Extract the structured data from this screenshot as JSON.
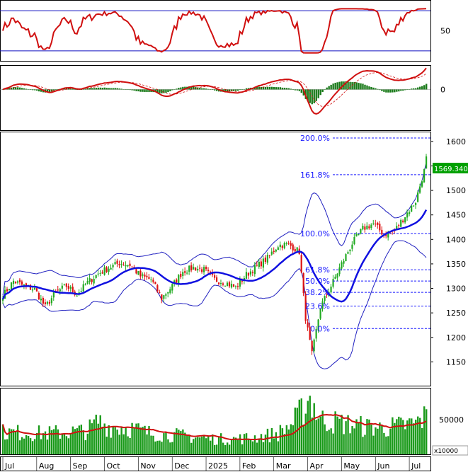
{
  "chart_data": {
    "type": "candlestick",
    "x_tick_labels": [
      "Jul",
      "Aug",
      "Sep",
      "Oct",
      "Nov",
      "Dec",
      "2025",
      "Feb",
      "Mar",
      "Apr",
      "May",
      "Jun",
      "Jul"
    ],
    "rsi_panel": {
      "y_ticks": [
        "50"
      ],
      "levels": [
        70,
        30
      ],
      "ylim": [
        20,
        80
      ]
    },
    "macd_panel": {
      "y_ticks": [
        "0"
      ],
      "ylim": [
        -70,
        40
      ]
    },
    "price_panel": {
      "y_ticks": [
        "1150",
        "1200",
        "1250",
        "1300",
        "1350",
        "1400",
        "1450",
        "1500",
        "1550",
        "1600"
      ],
      "ylim": [
        1100,
        1620
      ],
      "last_price": "1569.340",
      "fibonacci": [
        {
          "label": "200.0%",
          "value": 1607
        },
        {
          "label": "161.8%",
          "value": 1532
        },
        {
          "label": "100.0%",
          "value": 1412
        },
        {
          "label": "61.8%",
          "value": 1338
        },
        {
          "label": "50.0%",
          "value": 1315
        },
        {
          "label": "38.2%",
          "value": 1292
        },
        {
          "label": "23.6%",
          "value": 1264
        },
        {
          "label": "0.0%",
          "value": 1218
        }
      ],
      "close_anchors": [
        [
          0,
          1285
        ],
        [
          5,
          1315
        ],
        [
          10,
          1305
        ],
        [
          15,
          1298
        ],
        [
          20,
          1262
        ],
        [
          25,
          1292
        ],
        [
          30,
          1305
        ],
        [
          35,
          1288
        ],
        [
          40,
          1312
        ],
        [
          45,
          1330
        ],
        [
          50,
          1342
        ],
        [
          55,
          1352
        ],
        [
          60,
          1348
        ],
        [
          65,
          1325
        ],
        [
          70,
          1318
        ],
        [
          75,
          1280
        ],
        [
          80,
          1305
        ],
        [
          85,
          1335
        ],
        [
          90,
          1342
        ],
        [
          95,
          1338
        ],
        [
          100,
          1318
        ],
        [
          105,
          1312
        ],
        [
          110,
          1302
        ],
        [
          115,
          1328
        ],
        [
          120,
          1345
        ],
        [
          125,
          1362
        ],
        [
          130,
          1388
        ],
        [
          135,
          1390
        ],
        [
          140,
          1375
        ],
        [
          143,
          1240
        ],
        [
          146,
          1165
        ],
        [
          150,
          1262
        ],
        [
          155,
          1305
        ],
        [
          160,
          1350
        ],
        [
          165,
          1392
        ],
        [
          170,
          1422
        ],
        [
          175,
          1432
        ],
        [
          180,
          1410
        ],
        [
          185,
          1418
        ],
        [
          190,
          1448
        ],
        [
          195,
          1478
        ],
        [
          199,
          1540
        ],
        [
          200,
          1569
        ]
      ]
    },
    "volume_panel": {
      "y_ticks": [
        "50000"
      ],
      "ylim": [
        0,
        95000
      ],
      "unit_label": "x10000",
      "volume_anchors": [
        [
          0,
          32000
        ],
        [
          20,
          30000
        ],
        [
          40,
          34000
        ],
        [
          45,
          48000
        ],
        [
          50,
          40000
        ],
        [
          60,
          38000
        ],
        [
          70,
          30000
        ],
        [
          80,
          28000
        ],
        [
          90,
          25000
        ],
        [
          100,
          22000
        ],
        [
          110,
          22000
        ],
        [
          120,
          25000
        ],
        [
          130,
          30000
        ],
        [
          137,
          45000
        ],
        [
          141,
          62000
        ],
        [
          145,
          82000
        ],
        [
          150,
          50000
        ],
        [
          160,
          45000
        ],
        [
          170,
          40000
        ],
        [
          180,
          38000
        ],
        [
          190,
          42000
        ],
        [
          195,
          45000
        ],
        [
          200,
          55000
        ]
      ]
    }
  }
}
